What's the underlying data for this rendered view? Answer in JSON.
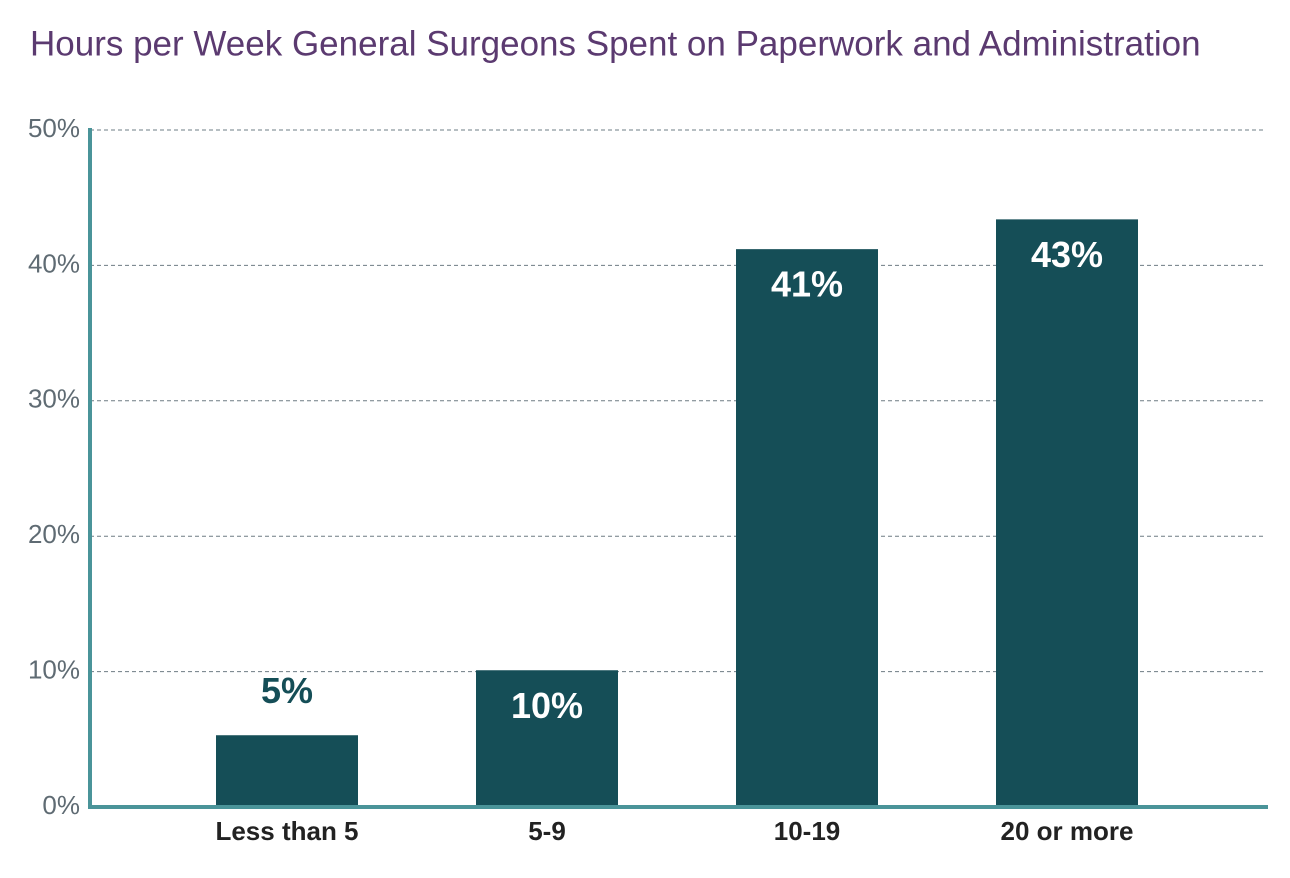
{
  "chart_data": {
    "type": "bar",
    "title": "Hours per Week General Surgeons Spent on Paperwork and Administration",
    "categories": [
      "Less than 5",
      "5-9",
      "10-19",
      "20 or more"
    ],
    "values": [
      5.3,
      10.1,
      41.2,
      43.4
    ],
    "value_labels": [
      "5%",
      "10%",
      "41%",
      "43%"
    ],
    "color": "#154e57",
    "ylim": [
      0,
      50
    ],
    "yticks": [
      {
        "value": 0,
        "label": "0%"
      },
      {
        "value": 10,
        "label": "10%"
      },
      {
        "value": 20,
        "label": "20%"
      },
      {
        "value": 30,
        "label": "30%"
      },
      {
        "value": 40,
        "label": "40%"
      },
      {
        "value": 50,
        "label": "50%"
      }
    ],
    "grid": true
  }
}
